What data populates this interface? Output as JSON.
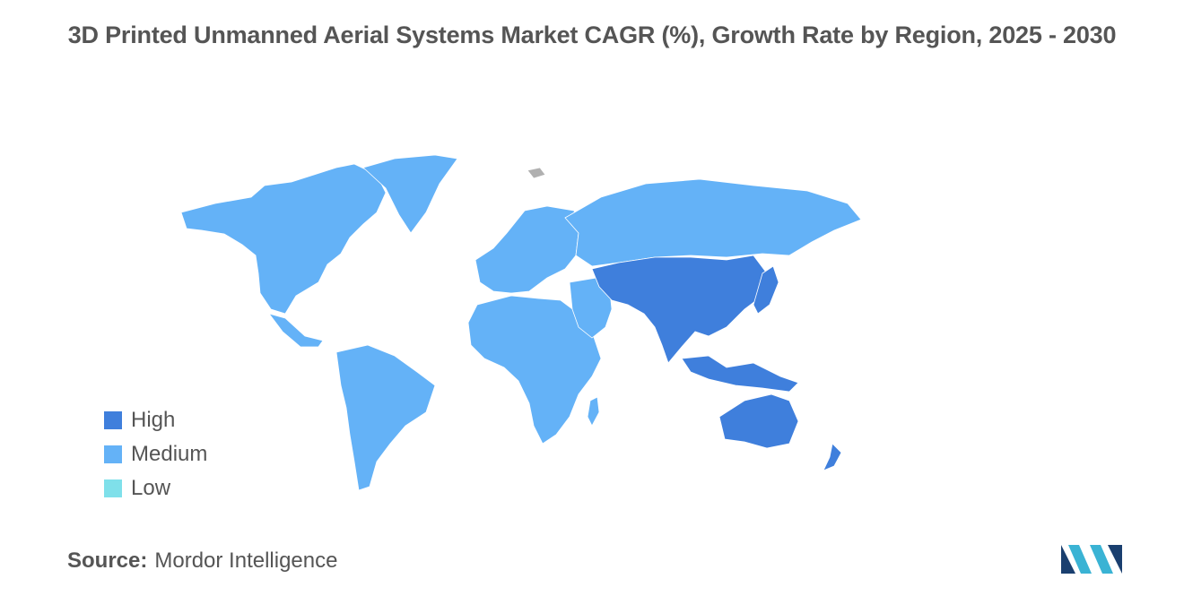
{
  "title": "3D Printed Unmanned Aerial Systems Market CAGR (%), Growth Rate by Region, 2025 - 2030",
  "legend": {
    "items": [
      {
        "label": "High",
        "color": "#3f7fdc"
      },
      {
        "label": "Medium",
        "color": "#64b2f7"
      },
      {
        "label": "Low",
        "color": "#7fe0ea"
      }
    ]
  },
  "colors": {
    "high": "#3f7fdc",
    "medium": "#64b2f7",
    "low": "#7fe0ea",
    "no_data": "#b0b0b0"
  },
  "regions": {
    "north_america": "Medium",
    "south_america": "Medium",
    "europe": "Medium",
    "middle_east_africa": "Medium",
    "asia_pacific": "High"
  },
  "source": {
    "label": "Source:",
    "name": "Mordor Intelligence"
  },
  "logo": {
    "name": "mordor-intelligence-logo",
    "colors": [
      "#1a3f6f",
      "#3ab3d4"
    ]
  }
}
